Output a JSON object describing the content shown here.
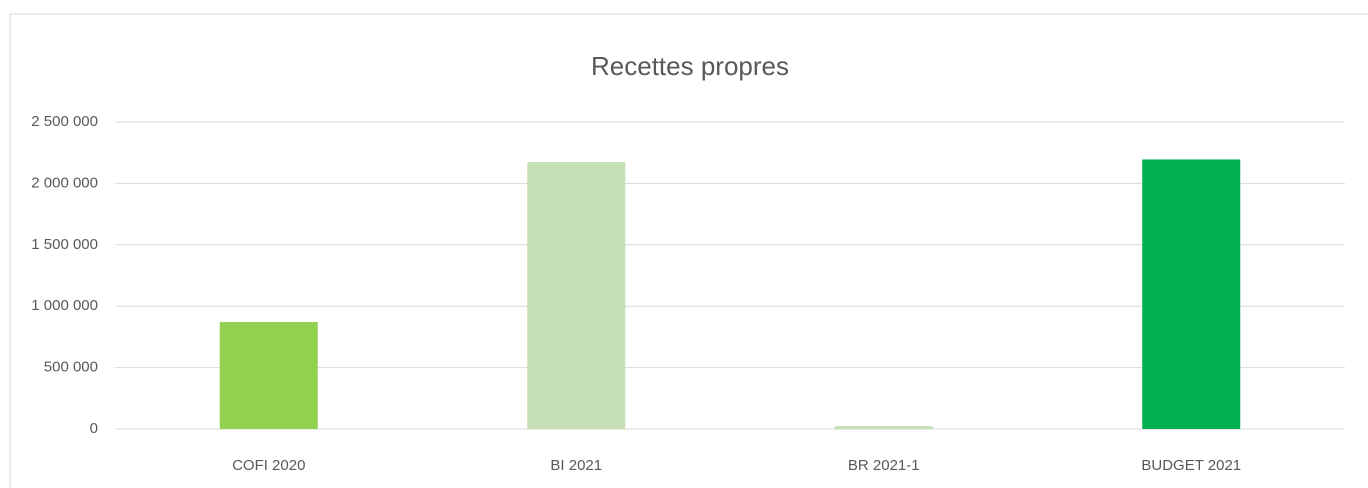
{
  "chart_data": {
    "type": "bar",
    "title": "Recettes propres",
    "categories": [
      "COFI 2020",
      "BI 2021",
      "BR 2021-1",
      "BUDGET 2021"
    ],
    "values": [
      871000,
      2174000,
      24000,
      2195000
    ],
    "colors": [
      "#92d050",
      "#c5e0b4",
      "#c5e0b4",
      "#00b050"
    ],
    "ylim": [
      0,
      2500000
    ],
    "yticks": [
      0,
      {
        "value": 500000,
        "label": "500 000"
      },
      {
        "value": 1000000,
        "label": "1 000 000"
      },
      {
        "value": 1500000,
        "label": "1 500 000"
      },
      {
        "value": 2000000,
        "label": "2 000 000"
      },
      {
        "value": 2500000,
        "label": "2 500 000"
      }
    ],
    "grid": true
  }
}
